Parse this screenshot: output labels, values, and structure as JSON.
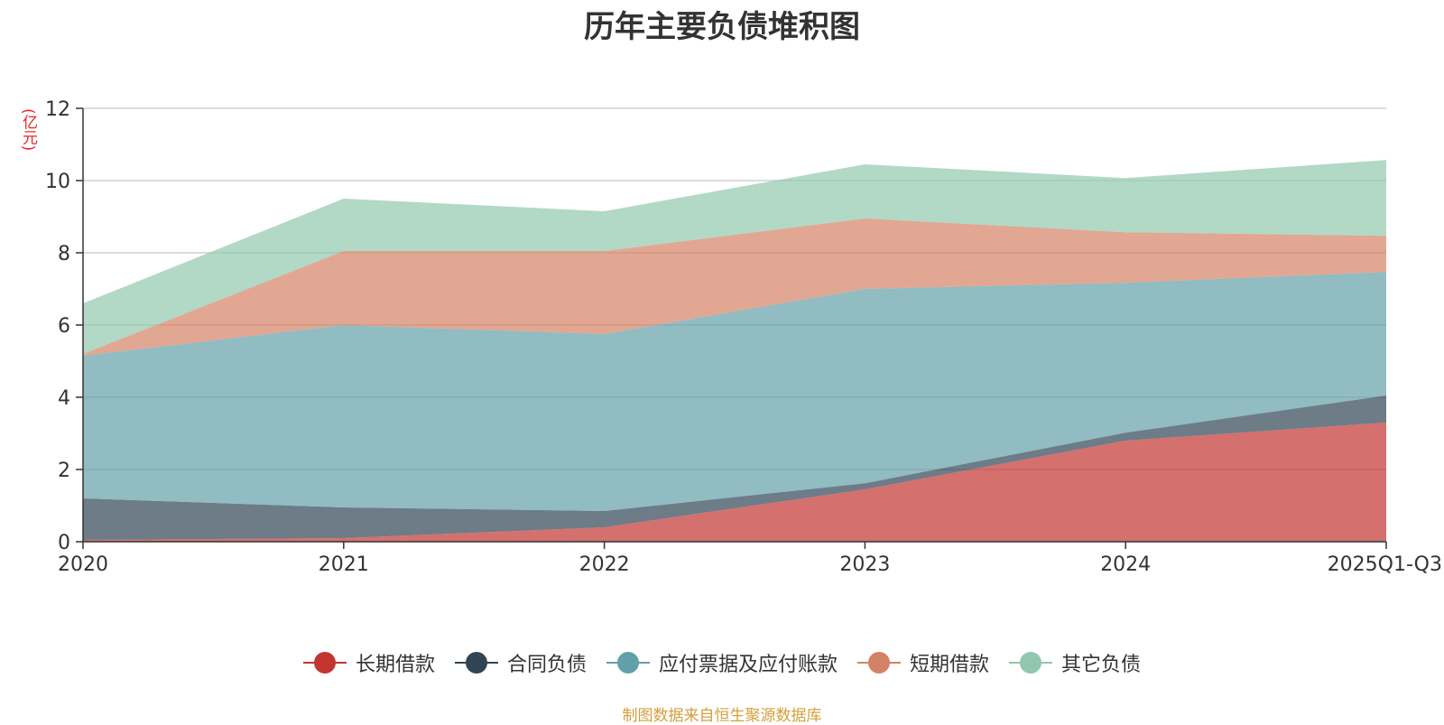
{
  "chart_data": {
    "type": "area",
    "stacked": true,
    "title": "历年主要负债堆积图",
    "ylabel": "(亿元)",
    "xlabel": "",
    "categories": [
      "2020",
      "2021",
      "2022",
      "2023",
      "2024",
      "2025Q1-Q3"
    ],
    "ylim": [
      0,
      12
    ],
    "yticks": [
      0,
      2,
      4,
      6,
      8,
      10,
      12
    ],
    "grid": true,
    "legend_position": "bottom",
    "series": [
      {
        "name": "长期借款",
        "color": "#c23531",
        "values": [
          0.05,
          0.1,
          0.4,
          1.45,
          2.8,
          3.3
        ]
      },
      {
        "name": "合同负债",
        "color": "#2f4554",
        "values": [
          1.15,
          0.85,
          0.45,
          0.17,
          0.22,
          0.75
        ]
      },
      {
        "name": "应付票据及应付账款",
        "color": "#61a0a8",
        "values": [
          3.95,
          5.05,
          4.9,
          5.38,
          4.15,
          3.42
        ]
      },
      {
        "name": "短期借款",
        "color": "#d48265",
        "values": [
          0.05,
          2.05,
          2.3,
          1.95,
          1.4,
          1.0
        ]
      },
      {
        "name": "其它负债",
        "color": "#91c7ae",
        "values": [
          1.4,
          1.45,
          1.1,
          1.5,
          1.5,
          2.1
        ]
      }
    ]
  },
  "source_note": "制图数据来自恒生聚源数据库"
}
